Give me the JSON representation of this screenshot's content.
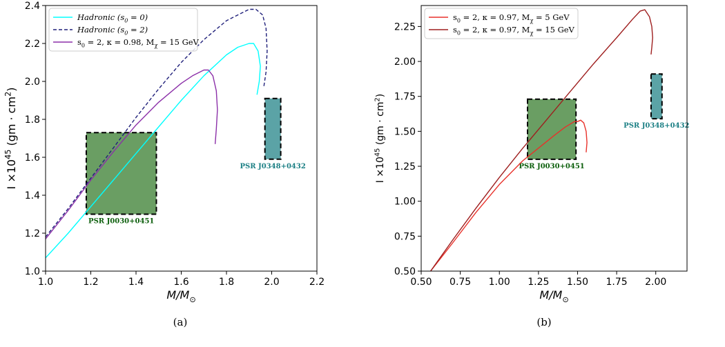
{
  "captions": {
    "a": "(a)",
    "b": "(b)",
    "figure": ""
  },
  "chart_data": [
    {
      "type": "line",
      "panel": "a",
      "xlabel": "M/M_⊙",
      "ylabel": "I ×10^45 (gm · cm^2)",
      "xlim": [
        1.0,
        2.2
      ],
      "ylim": [
        1.0,
        2.4
      ],
      "xticks": [
        1.0,
        1.2,
        1.4,
        1.6,
        1.8,
        2.0,
        2.2
      ],
      "yticks": [
        1.0,
        1.2,
        1.4,
        1.6,
        1.8,
        2.0,
        2.2,
        2.4
      ],
      "xtick_labels": [
        "1.0",
        "1.2",
        "1.4",
        "1.6",
        "1.8",
        "2.0",
        "2.2"
      ],
      "ytick_labels": [
        "1.0",
        "1.2",
        "1.4",
        "1.6",
        "1.8",
        "2.0",
        "2.2",
        "2.4"
      ],
      "grid": false,
      "legend_position": "top-left",
      "series": [
        {
          "name": "Hadronic (s_0 = 0)",
          "color": "#00ffff",
          "style": "solid",
          "x": [
            1.0,
            1.1,
            1.2,
            1.3,
            1.4,
            1.5,
            1.6,
            1.7,
            1.8,
            1.85,
            1.9,
            1.92,
            1.94,
            1.95,
            1.945,
            1.935
          ],
          "y": [
            1.07,
            1.2,
            1.34,
            1.48,
            1.62,
            1.76,
            1.9,
            2.03,
            2.14,
            2.18,
            2.2,
            2.2,
            2.16,
            2.08,
            2.0,
            1.93
          ]
        },
        {
          "name": "Hadronic (s_0 = 2)",
          "color": "#1f1f7a",
          "style": "dashed",
          "x": [
            1.0,
            1.1,
            1.2,
            1.3,
            1.4,
            1.5,
            1.6,
            1.7,
            1.8,
            1.85,
            1.9,
            1.93,
            1.96,
            1.975,
            1.98,
            1.975,
            1.965
          ],
          "y": [
            1.18,
            1.33,
            1.49,
            1.65,
            1.81,
            1.96,
            2.1,
            2.22,
            2.32,
            2.35,
            2.38,
            2.38,
            2.35,
            2.28,
            2.16,
            2.05,
            1.97
          ]
        },
        {
          "name": "s_0 = 2, κ = 0.98, M_χ = 15 GeV",
          "color": "#8b2fa8",
          "style": "solid",
          "x": [
            1.0,
            1.1,
            1.2,
            1.3,
            1.4,
            1.5,
            1.6,
            1.65,
            1.7,
            1.72,
            1.74,
            1.755,
            1.76,
            1.755,
            1.75
          ],
          "y": [
            1.17,
            1.32,
            1.48,
            1.63,
            1.77,
            1.89,
            1.99,
            2.03,
            2.06,
            2.06,
            2.03,
            1.95,
            1.85,
            1.75,
            1.67
          ]
        }
      ],
      "boxes": [
        {
          "label": "PSR J0030+0451",
          "x": [
            1.18,
            1.49
          ],
          "y": [
            1.3,
            1.73
          ],
          "fill": "#6a9e63",
          "label_color": "#0b5e0b",
          "label_pos": "below"
        },
        {
          "label": "PSR J0348+0432",
          "x": [
            1.97,
            2.04
          ],
          "y": [
            1.59,
            1.91
          ],
          "fill": "#5ba3a6",
          "label_color": "#1b7f84",
          "label_pos": "below"
        }
      ]
    },
    {
      "type": "line",
      "panel": "b",
      "xlabel": "M/M_⊙",
      "ylabel": "I ×10^45 (gm · cm^2)",
      "xlim": [
        0.5,
        2.2
      ],
      "ylim": [
        0.5,
        2.4
      ],
      "xticks": [
        0.5,
        0.75,
        1.0,
        1.25,
        1.5,
        1.75,
        2.0
      ],
      "yticks": [
        0.5,
        0.75,
        1.0,
        1.25,
        1.5,
        1.75,
        2.0,
        2.25
      ],
      "xtick_labels": [
        "0.50",
        "0.75",
        "1.00",
        "1.25",
        "1.50",
        "1.75",
        "2.00"
      ],
      "ytick_labels": [
        "0.50",
        "0.75",
        "1.00",
        "1.25",
        "1.50",
        "1.75",
        "2.00",
        "2.25"
      ],
      "grid": false,
      "legend_position": "top-left",
      "series": [
        {
          "name": "s_0 = 2, κ = 0.97, M_χ = 5 GeV",
          "color": "#e8312a",
          "style": "solid",
          "x": [
            0.56,
            0.7,
            0.85,
            1.0,
            1.15,
            1.25,
            1.35,
            1.42,
            1.48,
            1.5,
            1.52,
            1.54,
            1.555,
            1.56,
            1.555
          ],
          "y": [
            0.5,
            0.7,
            0.92,
            1.12,
            1.29,
            1.38,
            1.47,
            1.53,
            1.57,
            1.57,
            1.58,
            1.56,
            1.5,
            1.42,
            1.35
          ]
        },
        {
          "name": "s_0 = 2, κ = 0.97, M_χ = 15 GeV",
          "color": "#9e1e1e",
          "style": "solid",
          "x": [
            0.56,
            0.7,
            0.85,
            1.0,
            1.15,
            1.3,
            1.45,
            1.6,
            1.75,
            1.85,
            1.9,
            1.93,
            1.96,
            1.975,
            1.98,
            1.975,
            1.97
          ],
          "y": [
            0.5,
            0.72,
            0.95,
            1.17,
            1.38,
            1.58,
            1.78,
            1.98,
            2.17,
            2.3,
            2.36,
            2.37,
            2.32,
            2.25,
            2.17,
            2.1,
            2.05
          ]
        }
      ],
      "boxes": [
        {
          "label": "PSR J0030+0451",
          "x": [
            1.18,
            1.49
          ],
          "y": [
            1.3,
            1.73
          ],
          "fill": "#6a9e63",
          "label_color": "#0b5e0b",
          "label_pos": "below"
        },
        {
          "label": "PSR J0348+0432",
          "x": [
            1.97,
            2.04
          ],
          "y": [
            1.59,
            1.91
          ],
          "fill": "#5ba3a6",
          "label_color": "#1b7f84",
          "label_pos": "below"
        }
      ]
    }
  ]
}
